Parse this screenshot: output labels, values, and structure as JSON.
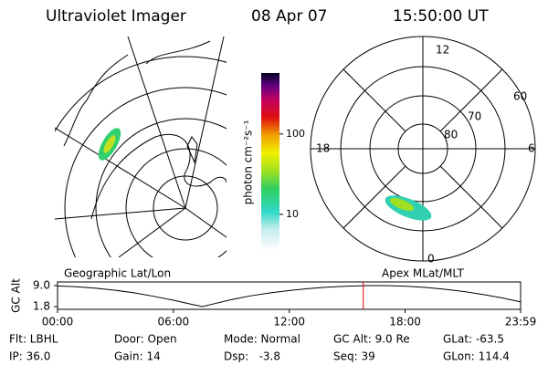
{
  "header": {
    "title": "Ultraviolet Imager",
    "date": "08 Apr 07",
    "time": "15:50:00 UT"
  },
  "maps": {
    "left_label": "Geographic Lat/Lon",
    "right_label": "Apex MLat/MLT",
    "mlt": [
      "12",
      "6",
      "0",
      "18"
    ],
    "mlat": [
      "60",
      "70",
      "80"
    ]
  },
  "colorbar": {
    "label": "photon cm⁻²s⁻¹",
    "scale": "log",
    "clim": [
      3.5,
      575
    ],
    "ticks": [
      10,
      100
    ]
  },
  "chart_data": {
    "type": "line",
    "ylabel": "GC Alt",
    "x": [
      0,
      1,
      2,
      3,
      4,
      5,
      6,
      7,
      7.5,
      8,
      9,
      10,
      11,
      12,
      13,
      14,
      15,
      16,
      17,
      18,
      19,
      20,
      21,
      22,
      23,
      23.98
    ],
    "series": [
      {
        "color": "#000000",
        "values": [
          8.9,
          8.6,
          8.1,
          7.4,
          6.5,
          5.3,
          4.0,
          2.5,
          1.8,
          2.6,
          4.2,
          5.5,
          6.5,
          7.3,
          8.0,
          8.5,
          8.8,
          9.0,
          9.0,
          8.8,
          8.4,
          7.8,
          7.0,
          6.0,
          4.8,
          3.4
        ]
      }
    ],
    "marker": {
      "x": 15.833,
      "color": "#e00000"
    },
    "xlim": [
      0,
      23.98
    ],
    "ylim": [
      1.8,
      9.0
    ],
    "xticks": [
      {
        "value": 0,
        "label": "00:00"
      },
      {
        "value": 6,
        "label": "06:00"
      },
      {
        "value": 12,
        "label": "12:00"
      },
      {
        "value": 18,
        "label": "18:00"
      },
      {
        "value": 23.98,
        "label": "23:59"
      }
    ],
    "yticks": [
      {
        "value": 9.0,
        "label": "9.0"
      },
      {
        "value": 1.8,
        "label": "1.8"
      }
    ]
  },
  "footer": {
    "rows": [
      [
        "Flt: LBHL",
        "Door: Open",
        "Mode: Normal",
        "GC Alt: 9.0 Re",
        "GLat: -63.5"
      ],
      [
        "IP: 36.0",
        "Gain: 14",
        "Dsp:   -3.8",
        "Seq: 39",
        "GLon: 114.4"
      ]
    ]
  }
}
